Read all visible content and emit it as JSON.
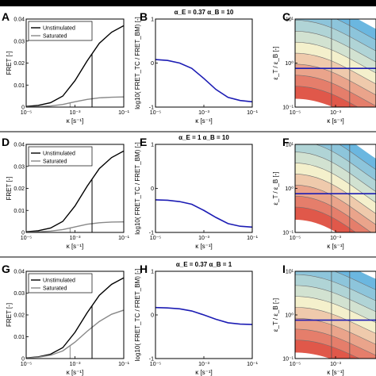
{
  "colors": {
    "unstimulated": "#000000",
    "saturated": "#888888",
    "ratio_line": "#1c1cb4",
    "cold": "#6bb7e0",
    "hot": "#e0584a",
    "contour": "#707070"
  },
  "chart_data": [
    {
      "panel": "A",
      "type": "line",
      "title": "",
      "xlabel": "κ [s⁻¹]",
      "ylabel": "FRET [-]",
      "x_ticks": [
        "10⁻⁵",
        "10⁻³",
        "10⁻¹"
      ],
      "y_ticks": [
        "0",
        "0.01",
        "0.02",
        "0.03",
        "0.04"
      ],
      "xlim": [
        -5,
        -1
      ],
      "ylim": [
        0,
        0.04
      ],
      "xscale": "log",
      "legend": {
        "placement": "top-left",
        "entries": [
          "Unstimulated",
          "Saturated"
        ]
      },
      "series": [
        {
          "name": "Unstimulated",
          "color_key": "unstimulated",
          "x": [
            -5,
            -4.5,
            -4,
            -3.5,
            -3,
            -2.5,
            -2,
            -1.5,
            -1
          ],
          "y": [
            0.0003,
            0.0008,
            0.002,
            0.005,
            0.012,
            0.021,
            0.029,
            0.034,
            0.037
          ]
        },
        {
          "name": "Saturated",
          "color_key": "saturated",
          "x": [
            -5,
            -4.5,
            -4,
            -3.5,
            -3,
            -2.5,
            -2,
            -1.5,
            -1
          ],
          "y": [
            0.0001,
            0.0002,
            0.0005,
            0.0012,
            0.0024,
            0.0035,
            0.0042,
            0.0045,
            0.0046
          ]
        }
      ],
      "vlines": [
        {
          "x": -2.3,
          "y": 0.024,
          "color_key": "unstimulated"
        },
        {
          "x": -3.2,
          "y": 0.0018,
          "color_key": "saturated"
        }
      ]
    },
    {
      "panel": "B",
      "type": "line",
      "title": "α_E = 0.37 α_B = 10",
      "xlabel": "κ [s⁻¹]",
      "ylabel": "log10( FRET_TC / FRET_BM) [-]",
      "x_ticks": [
        "10⁻⁵",
        "10⁻³",
        "10⁻¹"
      ],
      "y_ticks": [
        "-1",
        "0",
        "1"
      ],
      "xlim": [
        -5,
        -1
      ],
      "ylim": [
        -1,
        1
      ],
      "xscale": "log",
      "series": [
        {
          "name": "",
          "color_key": "ratio_line",
          "x": [
            -5,
            -4.5,
            -4,
            -3.5,
            -3,
            -2.5,
            -2,
            -1.5,
            -1
          ],
          "y": [
            0.08,
            0.06,
            0.0,
            -0.12,
            -0.35,
            -0.6,
            -0.78,
            -0.85,
            -0.88
          ]
        }
      ]
    },
    {
      "panel": "C",
      "type": "heatmap",
      "title": "",
      "xlabel": "κ [s⁻¹]",
      "ylabel": "ε_T / ε_B [-]",
      "x_ticks": [
        "10⁻⁵",
        "10⁻³",
        "10⁻¹"
      ],
      "y_ticks": [
        "10⁻¹",
        "10⁰",
        "10¹"
      ],
      "xlim": [
        -5,
        -1
      ],
      "ylim": [
        -1,
        1
      ],
      "hline": -0.12,
      "vlines": [
        -3.2,
        -2.3
      ],
      "tilt": 0.35
    },
    {
      "panel": "D",
      "type": "line",
      "title": "",
      "xlabel": "κ [s⁻¹]",
      "ylabel": "FRET [-]",
      "x_ticks": [
        "10⁻⁵",
        "10⁻³",
        "10⁻¹"
      ],
      "y_ticks": [
        "0",
        "0.01",
        "0.02",
        "0.03",
        "0.04"
      ],
      "xlim": [
        -5,
        -1
      ],
      "ylim": [
        0,
        0.04
      ],
      "xscale": "log",
      "legend": {
        "placement": "top-left",
        "entries": [
          "Unstimulated",
          "Saturated"
        ]
      },
      "series": [
        {
          "name": "Unstimulated",
          "color_key": "unstimulated",
          "x": [
            -5,
            -4.5,
            -4,
            -3.5,
            -3,
            -2.5,
            -2,
            -1.5,
            -1
          ],
          "y": [
            0.0003,
            0.0008,
            0.002,
            0.005,
            0.012,
            0.021,
            0.029,
            0.034,
            0.037
          ]
        },
        {
          "name": "Saturated",
          "color_key": "saturated",
          "x": [
            -5,
            -4.5,
            -4,
            -3.5,
            -3,
            -2.5,
            -2,
            -1.5,
            -1
          ],
          "y": [
            0.0001,
            0.0003,
            0.0006,
            0.0013,
            0.0025,
            0.0037,
            0.0044,
            0.0047,
            0.0048
          ]
        }
      ],
      "vlines": [
        {
          "x": -2.3,
          "y": 0.024,
          "color_key": "unstimulated"
        },
        {
          "x": -3.2,
          "y": 0.0018,
          "color_key": "saturated"
        }
      ]
    },
    {
      "panel": "E",
      "type": "line",
      "title": "α_E = 1 α_B = 10",
      "xlabel": "κ [s⁻¹]",
      "ylabel": "log10( FRET_TC / FRET_BM) [-]",
      "x_ticks": [
        "10⁻⁵",
        "10⁻³",
        "10⁻¹"
      ],
      "y_ticks": [
        "-1",
        "0",
        "1"
      ],
      "xlim": [
        -5,
        -1
      ],
      "ylim": [
        -1,
        1
      ],
      "xscale": "log",
      "series": [
        {
          "name": "",
          "color_key": "ratio_line",
          "x": [
            -5,
            -4.5,
            -4,
            -3.5,
            -3,
            -2.5,
            -2,
            -1.5,
            -1
          ],
          "y": [
            -0.26,
            -0.27,
            -0.3,
            -0.36,
            -0.5,
            -0.66,
            -0.8,
            -0.86,
            -0.88
          ]
        }
      ]
    },
    {
      "panel": "F",
      "type": "heatmap",
      "title": "",
      "xlabel": "κ [s⁻¹]",
      "ylabel": "ε_T / ε_B [-]",
      "x_ticks": [
        "10⁻⁵",
        "10⁻³",
        "10⁻¹"
      ],
      "y_ticks": [
        "10⁻¹",
        "10⁰",
        "10¹"
      ],
      "xlim": [
        -5,
        -1
      ],
      "ylim": [
        -1,
        1
      ],
      "hline": -0.12,
      "vlines": [
        -3.2,
        -2.3
      ],
      "tilt": 0.45
    },
    {
      "panel": "G",
      "type": "line",
      "title": "",
      "xlabel": "κ [s⁻¹]",
      "ylabel": "FRET [-]",
      "x_ticks": [
        "10⁻⁵",
        "10⁻³",
        "10⁻¹"
      ],
      "y_ticks": [
        "0",
        "0.01",
        "0.02",
        "0.03",
        "0.04"
      ],
      "xlim": [
        -5,
        -1
      ],
      "ylim": [
        0,
        0.04
      ],
      "xscale": "log",
      "legend": {
        "placement": "top-left",
        "entries": [
          "Unstimulated",
          "Saturated"
        ]
      },
      "series": [
        {
          "name": "Unstimulated",
          "color_key": "unstimulated",
          "x": [
            -5,
            -4.5,
            -4,
            -3.5,
            -3,
            -2.5,
            -2,
            -1.5,
            -1
          ],
          "y": [
            0.0003,
            0.0008,
            0.002,
            0.005,
            0.012,
            0.021,
            0.029,
            0.034,
            0.037
          ]
        },
        {
          "name": "Saturated",
          "color_key": "saturated",
          "x": [
            -5,
            -4.5,
            -4,
            -3.5,
            -3,
            -2.5,
            -2,
            -1.5,
            -1
          ],
          "y": [
            0.0002,
            0.0006,
            0.0015,
            0.0035,
            0.0075,
            0.0125,
            0.017,
            0.0203,
            0.0222
          ]
        }
      ],
      "vlines": [
        {
          "x": -2.3,
          "y": 0.024,
          "color_key": "unstimulated"
        },
        {
          "x": -3.2,
          "y": 0.006,
          "color_key": "saturated"
        }
      ]
    },
    {
      "panel": "H",
      "type": "line",
      "title": "α_E = 0.37 α_B = 1",
      "xlabel": "κ [s⁻¹]",
      "ylabel": "log10( FRET_TC / FRET_BM) [-]",
      "x_ticks": [
        "10⁻⁵",
        "10⁻³",
        "10⁻¹"
      ],
      "y_ticks": [
        "-1",
        "0",
        "1"
      ],
      "xlim": [
        -5,
        -1
      ],
      "ylim": [
        -1,
        1
      ],
      "xscale": "log",
      "series": [
        {
          "name": "",
          "color_key": "ratio_line",
          "x": [
            -5,
            -4.5,
            -4,
            -3.5,
            -3,
            -2.5,
            -2,
            -1.5,
            -1
          ],
          "y": [
            0.17,
            0.16,
            0.14,
            0.09,
            0.0,
            -0.1,
            -0.18,
            -0.21,
            -0.22
          ]
        }
      ]
    },
    {
      "panel": "I",
      "type": "heatmap",
      "title": "",
      "xlabel": "κ [s⁻¹]",
      "ylabel": "ε_T / ε_B [-]",
      "x_ticks": [
        "10⁻⁵",
        "10⁻³",
        "10⁻¹"
      ],
      "y_ticks": [
        "10⁻¹",
        "10⁰",
        "10¹"
      ],
      "xlim": [
        -5,
        -1
      ],
      "ylim": [
        -1,
        1
      ],
      "hline": -0.12,
      "vlines": [
        -3.2,
        -2.3
      ],
      "tilt": 0.3
    }
  ]
}
